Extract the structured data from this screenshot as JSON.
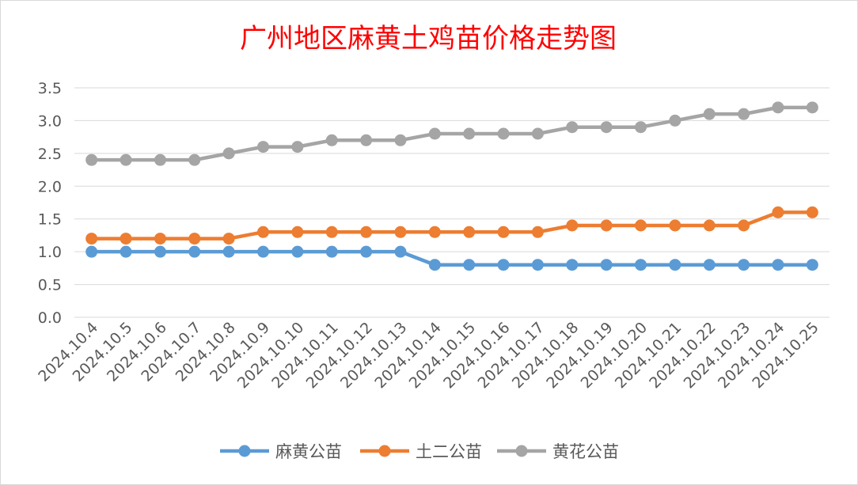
{
  "chart_data": {
    "type": "line",
    "title": "广州地区麻黄土鸡苗价格走势图",
    "xlabel": "",
    "ylabel": "",
    "ylim": [
      0,
      3.5
    ],
    "yticks": [
      "0.0",
      "0.5",
      "1.0",
      "1.5",
      "2.0",
      "2.5",
      "3.0",
      "3.5"
    ],
    "grid": true,
    "legend_position": "bottom",
    "categories": [
      "2024.10.4",
      "2024.10.5",
      "2024.10.6",
      "2024.10.7",
      "2024.10.8",
      "2024.10.9",
      "2024.10.10",
      "2024.10.11",
      "2024.10.12",
      "2024.10.13",
      "2024.10.14",
      "2024.10.15",
      "2024.10.16",
      "2024.10.17",
      "2024.10.18",
      "2024.10.19",
      "2024.10.20",
      "2024.10.21",
      "2024.10.22",
      "2024.10.23",
      "2024.10.24",
      "2024.10.25"
    ],
    "series": [
      {
        "name": "麻黄公苗",
        "color": "#5b9bd5",
        "values": [
          1.0,
          1.0,
          1.0,
          1.0,
          1.0,
          1.0,
          1.0,
          1.0,
          1.0,
          1.0,
          0.8,
          0.8,
          0.8,
          0.8,
          0.8,
          0.8,
          0.8,
          0.8,
          0.8,
          0.8,
          0.8,
          0.8
        ]
      },
      {
        "name": "土二公苗",
        "color": "#ed7d31",
        "values": [
          1.2,
          1.2,
          1.2,
          1.2,
          1.2,
          1.3,
          1.3,
          1.3,
          1.3,
          1.3,
          1.3,
          1.3,
          1.3,
          1.3,
          1.4,
          1.4,
          1.4,
          1.4,
          1.4,
          1.4,
          1.6,
          1.6
        ]
      },
      {
        "name": "黄花公苗",
        "color": "#a5a5a5",
        "values": [
          2.4,
          2.4,
          2.4,
          2.4,
          2.5,
          2.6,
          2.6,
          2.7,
          2.7,
          2.7,
          2.8,
          2.8,
          2.8,
          2.8,
          2.9,
          2.9,
          2.9,
          3.0,
          3.1,
          3.1,
          3.2,
          3.2
        ]
      }
    ]
  }
}
